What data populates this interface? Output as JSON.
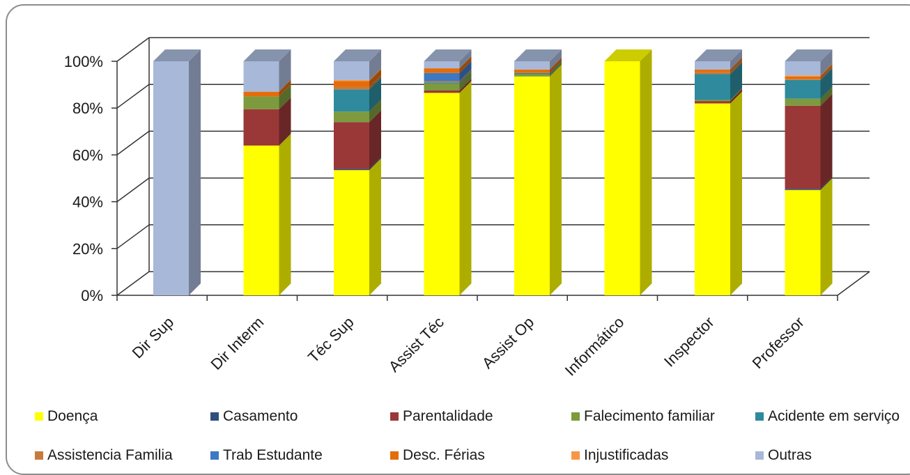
{
  "chart_data": {
    "type": "bar",
    "stacked": "percent",
    "three_d": true,
    "title": "",
    "xlabel": "",
    "ylabel": "",
    "ylim": [
      0,
      100
    ],
    "y_ticks": [
      "0%",
      "20%",
      "40%",
      "60%",
      "80%",
      "100%"
    ],
    "grid": true,
    "legend_position": "bottom",
    "categories": [
      "Dir Sup",
      "Dir Interm",
      "Téc Sup",
      "Assist Téc",
      "Assist Op",
      "Informático",
      "Inspector",
      "Professor"
    ],
    "series": [
      {
        "name": "Doença",
        "color": "#ffff00",
        "values": [
          0,
          64,
          53.5,
          86.5,
          93.5,
          100,
          82,
          45
        ]
      },
      {
        "name": "Casamento",
        "color": "#2e4f7f",
        "values": [
          0,
          0,
          0.5,
          0,
          0,
          0,
          0,
          0.5
        ]
      },
      {
        "name": "Parentalidade",
        "color": "#9a3838",
        "values": [
          0,
          15.5,
          20,
          1,
          0,
          0,
          1,
          35.5
        ]
      },
      {
        "name": "Falecimento familiar",
        "color": "#7d9a3e",
        "values": [
          0,
          5.5,
          4.5,
          3,
          1,
          0,
          0.5,
          3
        ]
      },
      {
        "name": "Acidente em serviço",
        "color": "#2e8a9c",
        "values": [
          0,
          0,
          9.5,
          0.5,
          0.5,
          0,
          11,
          8
        ]
      },
      {
        "name": "Assistencia Familia",
        "color": "#c87a3a",
        "values": [
          0,
          0,
          1,
          0.5,
          0,
          0,
          1,
          0.5
        ]
      },
      {
        "name": "Trab Estudante",
        "color": "#3d78c2",
        "values": [
          0,
          0,
          0,
          3.5,
          0,
          0,
          0,
          0
        ]
      },
      {
        "name": "Desc. Férias",
        "color": "#e46c0a",
        "values": [
          0,
          2,
          2.5,
          2,
          1.5,
          0,
          1,
          1
        ]
      },
      {
        "name": "Injustificadas",
        "color": "#f79646",
        "values": [
          0,
          0,
          0.5,
          0,
          0,
          0,
          0,
          0.5
        ]
      },
      {
        "name": "Outras",
        "color": "#a8b8d8",
        "values": [
          100,
          13,
          8,
          3,
          3.5,
          0,
          3.5,
          6
        ]
      }
    ]
  }
}
